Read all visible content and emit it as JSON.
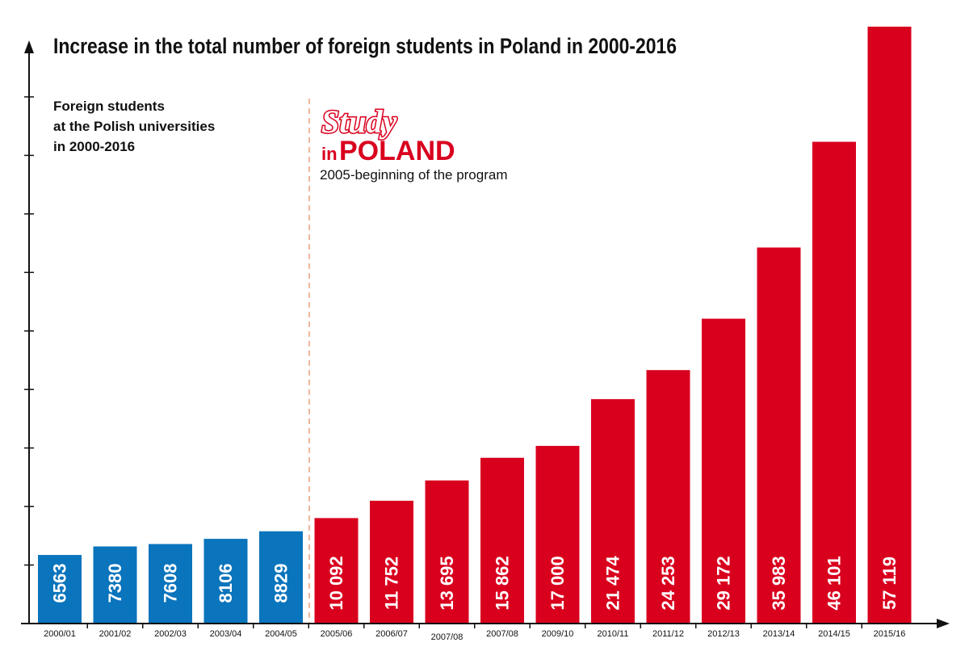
{
  "chart_data": {
    "type": "bar",
    "title": "Increase in the total number of foreign students in Poland in 2000-2016",
    "subtitle_lines": [
      "Foreign students",
      "at the Polish universities",
      "in 2000-2016"
    ],
    "categories": [
      "2000/01",
      "2001/02",
      "2002/03",
      "2003/04",
      "2004/05",
      "2005/06",
      "2006/07",
      "2007/08",
      "2007/08",
      "2009/10",
      "2010/11",
      "2011/12",
      "2012/13",
      "2013/14",
      "2014/15",
      "2015/16"
    ],
    "values": [
      6563,
      7380,
      7608,
      8106,
      8829,
      10092,
      11752,
      13695,
      15862,
      17000,
      21474,
      24253,
      29172,
      35983,
      46101,
      57119
    ],
    "value_labels": [
      "6563",
      "7380",
      "7608",
      "8106",
      "8829",
      "10 092",
      "11 752",
      "13 695",
      "15 862",
      "17 000",
      "21 474",
      "24 253",
      "29 172",
      "35 983",
      "46 101",
      "57 119"
    ],
    "ylim": [
      0,
      57119
    ],
    "grid": false,
    "colors": {
      "before_program": "#0a74bc",
      "after_program": "#d9001e",
      "divider": "#f2b89a",
      "axis": "#111111"
    },
    "program_start_index": 5
  },
  "logo": {
    "line1": "Study",
    "line2_small": "in",
    "line2_big": "POLAND",
    "icon": "study-in-poland-logo"
  },
  "annotation": "2005-beginning of the program"
}
